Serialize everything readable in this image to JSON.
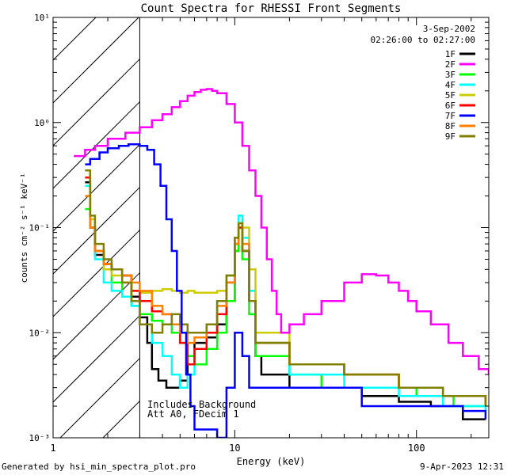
{
  "chart_data": {
    "type": "line",
    "title": "Count Spectra for RHESSI Front Segments",
    "xlabel": "Energy (keV)",
    "ylabel": "counts cm⁻² s⁻¹ keV⁻¹",
    "x_scale": "log",
    "y_scale": "log",
    "xlim": [
      1,
      250
    ],
    "ylim": [
      0.001,
      10
    ],
    "x_tick_labels": [
      "1",
      "10",
      "100"
    ],
    "y_tick_labels": [
      "10⁻³",
      "10⁻²",
      "10⁻¹",
      "10⁰",
      "10¹"
    ],
    "shaded_region": [
      1,
      3
    ],
    "date": "3-Sep-2002",
    "time_range": "02:26:00 to 02:27:00",
    "annotations": [
      "Includes Background",
      "Att A0, FDecim 1"
    ],
    "legend_position": "top-right",
    "series": [
      {
        "name": "1F",
        "color": "#000000",
        "values": [
          [
            1.5,
            0.27
          ],
          [
            1.6,
            0.1
          ],
          [
            1.7,
            0.055
          ],
          [
            1.9,
            0.045
          ],
          [
            2.1,
            0.04
          ],
          [
            2.4,
            0.035
          ],
          [
            2.7,
            0.022
          ],
          [
            3.0,
            0.014
          ],
          [
            3.3,
            0.008
          ],
          [
            3.5,
            0.0045
          ],
          [
            3.8,
            0.0035
          ],
          [
            4.2,
            0.003
          ],
          [
            4.6,
            0.003
          ],
          [
            5.0,
            0.0035
          ],
          [
            5.5,
            0.006
          ],
          [
            6.0,
            0.008
          ],
          [
            7.0,
            0.009
          ],
          [
            8.0,
            0.012
          ],
          [
            9.0,
            0.02
          ],
          [
            10.0,
            0.06
          ],
          [
            10.5,
            0.1
          ],
          [
            11.0,
            0.06
          ],
          [
            12.0,
            0.02
          ],
          [
            13.0,
            0.006
          ],
          [
            14.0,
            0.004
          ],
          [
            20.0,
            0.003
          ],
          [
            30.0,
            0.003
          ],
          [
            50.0,
            0.0025
          ],
          [
            80.0,
            0.0022
          ],
          [
            120.0,
            0.002
          ],
          [
            180.0,
            0.0015
          ],
          [
            240.0,
            0.0015
          ]
        ]
      },
      {
        "name": "2F",
        "color": "#ff00ff",
        "values": [
          [
            1.3,
            0.48
          ],
          [
            1.5,
            0.55
          ],
          [
            1.7,
            0.6
          ],
          [
            2.0,
            0.7
          ],
          [
            2.5,
            0.8
          ],
          [
            3.0,
            0.9
          ],
          [
            3.5,
            1.05
          ],
          [
            4.0,
            1.2
          ],
          [
            4.5,
            1.4
          ],
          [
            5.0,
            1.6
          ],
          [
            5.5,
            1.8
          ],
          [
            6.0,
            1.95
          ],
          [
            6.5,
            2.05
          ],
          [
            7.0,
            2.08
          ],
          [
            7.5,
            2.0
          ],
          [
            8.0,
            1.9
          ],
          [
            9.0,
            1.5
          ],
          [
            10.0,
            1.0
          ],
          [
            11.0,
            0.6
          ],
          [
            12.0,
            0.35
          ],
          [
            13.0,
            0.2
          ],
          [
            14.0,
            0.1
          ],
          [
            15.0,
            0.05
          ],
          [
            16.0,
            0.025
          ],
          [
            17.0,
            0.015
          ],
          [
            18.0,
            0.01
          ],
          [
            20.0,
            0.012
          ],
          [
            24.0,
            0.015
          ],
          [
            30.0,
            0.02
          ],
          [
            40.0,
            0.03
          ],
          [
            50.0,
            0.036
          ],
          [
            60.0,
            0.035
          ],
          [
            70.0,
            0.03
          ],
          [
            80.0,
            0.025
          ],
          [
            90.0,
            0.02
          ],
          [
            100.0,
            0.016
          ],
          [
            120.0,
            0.012
          ],
          [
            150.0,
            0.008
          ],
          [
            180.0,
            0.006
          ],
          [
            220.0,
            0.0045
          ],
          [
            250.0,
            0.004
          ]
        ]
      },
      {
        "name": "3F",
        "color": "#00ff00",
        "values": [
          [
            1.5,
            0.15
          ],
          [
            1.6,
            0.1
          ],
          [
            1.7,
            0.06
          ],
          [
            1.9,
            0.045
          ],
          [
            2.1,
            0.03
          ],
          [
            2.4,
            0.022
          ],
          [
            2.7,
            0.018
          ],
          [
            3.0,
            0.015
          ],
          [
            3.5,
            0.013
          ],
          [
            4.0,
            0.012
          ],
          [
            4.5,
            0.01
          ],
          [
            5.0,
            0.008
          ],
          [
            5.5,
            0.006
          ],
          [
            6.0,
            0.005
          ],
          [
            7.0,
            0.007
          ],
          [
            8.0,
            0.01
          ],
          [
            9.0,
            0.02
          ],
          [
            10.0,
            0.06
          ],
          [
            10.5,
            0.1
          ],
          [
            11.0,
            0.05
          ],
          [
            12.0,
            0.015
          ],
          [
            13.0,
            0.006
          ],
          [
            20.0,
            0.004
          ],
          [
            30.0,
            0.003
          ],
          [
            60.0,
            0.003
          ],
          [
            100.0,
            0.0025
          ],
          [
            160.0,
            0.002
          ],
          [
            240.0,
            0.002
          ]
        ]
      },
      {
        "name": "4F",
        "color": "#00ffff",
        "values": [
          [
            1.5,
            0.25
          ],
          [
            1.6,
            0.1
          ],
          [
            1.7,
            0.05
          ],
          [
            1.9,
            0.03
          ],
          [
            2.1,
            0.025
          ],
          [
            2.4,
            0.022
          ],
          [
            2.7,
            0.018
          ],
          [
            3.0,
            0.012
          ],
          [
            3.5,
            0.008
          ],
          [
            4.0,
            0.006
          ],
          [
            4.5,
            0.004
          ],
          [
            5.0,
            0.003
          ],
          [
            5.5,
            0.004
          ],
          [
            6.0,
            0.007
          ],
          [
            7.0,
            0.012
          ],
          [
            8.0,
            0.02
          ],
          [
            9.0,
            0.035
          ],
          [
            10.0,
            0.08
          ],
          [
            10.5,
            0.13
          ],
          [
            11.0,
            0.08
          ],
          [
            12.0,
            0.025
          ],
          [
            13.0,
            0.008
          ],
          [
            20.0,
            0.004
          ],
          [
            40.0,
            0.003
          ],
          [
            80.0,
            0.0025
          ],
          [
            140.0,
            0.002
          ],
          [
            240.0,
            0.0018
          ]
        ]
      },
      {
        "name": "5F",
        "color": "#cccc00",
        "values": [
          [
            1.5,
            0.35
          ],
          [
            1.6,
            0.12
          ],
          [
            1.7,
            0.06
          ],
          [
            1.9,
            0.04
          ],
          [
            2.1,
            0.035
          ],
          [
            2.4,
            0.03
          ],
          [
            2.7,
            0.025
          ],
          [
            3.0,
            0.024
          ],
          [
            3.5,
            0.025
          ],
          [
            4.0,
            0.026
          ],
          [
            4.5,
            0.025
          ],
          [
            5.0,
            0.024
          ],
          [
            5.5,
            0.025
          ],
          [
            6.0,
            0.024
          ],
          [
            7.0,
            0.024
          ],
          [
            8.0,
            0.025
          ],
          [
            9.0,
            0.035
          ],
          [
            10.0,
            0.08
          ],
          [
            10.5,
            0.11
          ],
          [
            11.0,
            0.1
          ],
          [
            12.0,
            0.04
          ],
          [
            13.0,
            0.01
          ],
          [
            20.0,
            0.005
          ],
          [
            40.0,
            0.004
          ],
          [
            80.0,
            0.003
          ],
          [
            140.0,
            0.0025
          ],
          [
            240.0,
            0.002
          ]
        ]
      },
      {
        "name": "6F",
        "color": "#ff0000",
        "values": [
          [
            1.5,
            0.3
          ],
          [
            1.6,
            0.1
          ],
          [
            1.7,
            0.06
          ],
          [
            1.9,
            0.045
          ],
          [
            2.1,
            0.04
          ],
          [
            2.4,
            0.035
          ],
          [
            2.7,
            0.025
          ],
          [
            3.0,
            0.02
          ],
          [
            3.5,
            0.016
          ],
          [
            4.0,
            0.015
          ],
          [
            4.5,
            0.012
          ],
          [
            5.0,
            0.008
          ],
          [
            5.5,
            0.005
          ],
          [
            6.0,
            0.007
          ],
          [
            7.0,
            0.01
          ],
          [
            8.0,
            0.015
          ],
          [
            9.0,
            0.03
          ],
          [
            10.0,
            0.07
          ],
          [
            10.5,
            0.1
          ],
          [
            11.0,
            0.06
          ],
          [
            12.0,
            0.02
          ],
          [
            13.0,
            0.008
          ],
          [
            20.0,
            0.005
          ],
          [
            40.0,
            0.004
          ],
          [
            80.0,
            0.003
          ],
          [
            140.0,
            0.0025
          ],
          [
            240.0,
            0.002
          ]
        ]
      },
      {
        "name": "7F",
        "color": "#0000ff",
        "values": [
          [
            1.5,
            0.4
          ],
          [
            1.6,
            0.45
          ],
          [
            1.8,
            0.52
          ],
          [
            2.0,
            0.57
          ],
          [
            2.3,
            0.6
          ],
          [
            2.6,
            0.62
          ],
          [
            3.0,
            0.6
          ],
          [
            3.3,
            0.55
          ],
          [
            3.6,
            0.4
          ],
          [
            3.9,
            0.25
          ],
          [
            4.2,
            0.12
          ],
          [
            4.5,
            0.06
          ],
          [
            4.8,
            0.025
          ],
          [
            5.1,
            0.01
          ],
          [
            5.4,
            0.004
          ],
          [
            5.7,
            0.002
          ],
          [
            6.0,
            0.0012
          ],
          [
            8.0,
            0.001
          ],
          [
            9.0,
            0.003
          ],
          [
            10.0,
            0.01
          ],
          [
            11.0,
            0.006
          ],
          [
            12.0,
            0.003
          ],
          [
            15.0,
            0.003
          ],
          [
            25.0,
            0.003
          ],
          [
            50.0,
            0.002
          ],
          [
            100.0,
            0.002
          ],
          [
            180.0,
            0.0018
          ],
          [
            240.0,
            0.0015
          ]
        ]
      },
      {
        "name": "8F",
        "color": "#ff8000",
        "values": [
          [
            1.5,
            0.2
          ],
          [
            1.6,
            0.1
          ],
          [
            1.7,
            0.06
          ],
          [
            1.9,
            0.045
          ],
          [
            2.1,
            0.04
          ],
          [
            2.4,
            0.035
          ],
          [
            2.7,
            0.03
          ],
          [
            3.0,
            0.025
          ],
          [
            3.5,
            0.018
          ],
          [
            4.0,
            0.015
          ],
          [
            4.5,
            0.012
          ],
          [
            5.0,
            0.01
          ],
          [
            5.5,
            0.008
          ],
          [
            6.0,
            0.009
          ],
          [
            7.0,
            0.012
          ],
          [
            8.0,
            0.018
          ],
          [
            9.0,
            0.03
          ],
          [
            10.0,
            0.07
          ],
          [
            10.5,
            0.11
          ],
          [
            11.0,
            0.07
          ],
          [
            12.0,
            0.02
          ],
          [
            13.0,
            0.008
          ],
          [
            20.0,
            0.005
          ],
          [
            40.0,
            0.004
          ],
          [
            80.0,
            0.003
          ],
          [
            140.0,
            0.0025
          ],
          [
            240.0,
            0.002
          ]
        ]
      },
      {
        "name": "9F",
        "color": "#808000",
        "values": [
          [
            1.5,
            0.35
          ],
          [
            1.6,
            0.13
          ],
          [
            1.7,
            0.07
          ],
          [
            1.9,
            0.05
          ],
          [
            2.1,
            0.04
          ],
          [
            2.4,
            0.03
          ],
          [
            2.7,
            0.02
          ],
          [
            3.0,
            0.012
          ],
          [
            3.5,
            0.01
          ],
          [
            4.0,
            0.012
          ],
          [
            4.5,
            0.015
          ],
          [
            5.0,
            0.012
          ],
          [
            5.5,
            0.01
          ],
          [
            6.0,
            0.01
          ],
          [
            7.0,
            0.012
          ],
          [
            8.0,
            0.02
          ],
          [
            9.0,
            0.035
          ],
          [
            10.0,
            0.08
          ],
          [
            10.5,
            0.11
          ],
          [
            11.0,
            0.06
          ],
          [
            12.0,
            0.02
          ],
          [
            13.0,
            0.008
          ],
          [
            20.0,
            0.005
          ],
          [
            40.0,
            0.004
          ],
          [
            80.0,
            0.003
          ],
          [
            140.0,
            0.0025
          ],
          [
            240.0,
            0.002
          ]
        ]
      }
    ]
  },
  "footer": {
    "generated_by": "Generated by hsi_min_spectra_plot.pro",
    "timestamp": "9-Apr-2023 12:31"
  }
}
